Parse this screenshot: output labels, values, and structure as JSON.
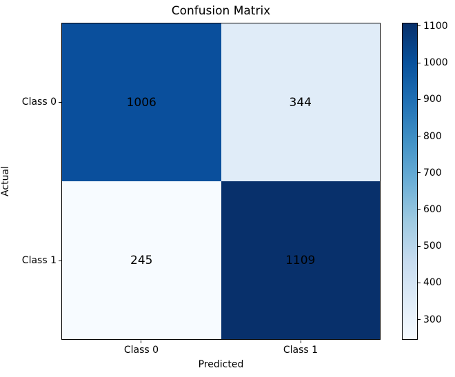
{
  "chart_data": {
    "type": "heatmap",
    "title": "Confusion Matrix",
    "xlabel": "Predicted",
    "ylabel": "Actual",
    "x_ticklabels": [
      "Class 0",
      "Class 1"
    ],
    "y_ticklabels": [
      "Class 0",
      "Class 1"
    ],
    "matrix": [
      [
        1006,
        344
      ],
      [
        245,
        1109
      ]
    ],
    "vmin": 245,
    "vmax": 1109,
    "colormap": "Blues",
    "cell_colors": [
      [
        "#0a4f9c",
        "#e0ecf8"
      ],
      [
        "#f7fbff",
        "#08306b"
      ]
    ],
    "grid": false,
    "colorbar": {
      "position": "right",
      "ticks": [
        300,
        400,
        500,
        600,
        700,
        800,
        900,
        1000,
        1100
      ],
      "gradient_stops": [
        "#f7fbff",
        "#deebf7",
        "#c6dbef",
        "#9ecae1",
        "#6baed6",
        "#4292c6",
        "#2171b5",
        "#08519c",
        "#08306b"
      ]
    }
  }
}
